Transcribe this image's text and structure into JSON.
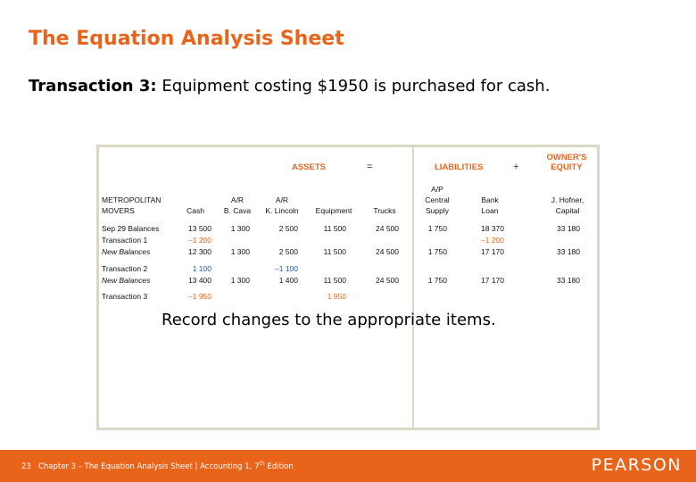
{
  "slide": {
    "title": "The Equation Analysis Sheet",
    "subtitle_bold": "Transaction 3:",
    "subtitle_rest": " Equipment costing $1950 is purchased for cash.",
    "record_note": "Record changes to the appropriate items."
  },
  "table": {
    "header_assets": "ASSETS",
    "equals": "=",
    "header_liabilities": "LIABILITIES",
    "plus": "+",
    "header_equity_1": "OWNER'S",
    "header_equity_2": "EQUITY",
    "company_1": "METROPOLITAN",
    "company_2": "MOVERS",
    "columns": [
      {
        "l1": "",
        "l2": "Cash"
      },
      {
        "l1": "A/R",
        "l2": "B. Cava"
      },
      {
        "l1": "A/R",
        "l2": "K. Lincoln"
      },
      {
        "l1": "",
        "l2": "Equipment"
      },
      {
        "l1": "",
        "l2": "Trucks"
      },
      {
        "l0": "A/P",
        "l1": "Central",
        "l2": "Supply"
      },
      {
        "l1": "Bank",
        "l2": "Loan"
      },
      {
        "l1": "J. Hofner,",
        "l2": "Capital"
      }
    ],
    "rows": [
      {
        "label": "Sep 29 Balances",
        "cells": [
          "13 500",
          "1 300",
          "2 500",
          "11 500",
          "24 500",
          "1 750",
          "18 370",
          "33 180"
        ]
      },
      {
        "label": "Transaction 1",
        "cells": [
          "–1 200",
          "",
          "",
          "",
          "",
          "",
          "–1 200",
          ""
        ]
      },
      {
        "label": "New Balances",
        "cells": [
          "12 300",
          "1 300",
          "2 500",
          "11 500",
          "24 500",
          "1 750",
          "17 170",
          "33 180"
        ]
      },
      {
        "label": "Transaction 2",
        "cells": [
          "1 100",
          "",
          "–1 100",
          "",
          "",
          "",
          "",
          ""
        ]
      },
      {
        "label": "New Balances",
        "cells": [
          "13 400",
          "1 300",
          "1 400",
          "11 500",
          "24 500",
          "1 750",
          "17 170",
          "33 180"
        ]
      },
      {
        "label": "Transaction 3",
        "cells": [
          "–1 950",
          "",
          "",
          "1 950",
          "",
          "",
          "",
          ""
        ]
      }
    ]
  },
  "footer": {
    "page": "23",
    "text_pre": "Chapter 3 – The Equation Analysis Sheet | Accounting 1, 7",
    "text_sup": "th",
    "text_post": " Edition",
    "brand": "PEARSON"
  },
  "colors": {
    "accent": "#e8641b",
    "blue": "#1f59a6",
    "border": "#dcd6c6"
  }
}
